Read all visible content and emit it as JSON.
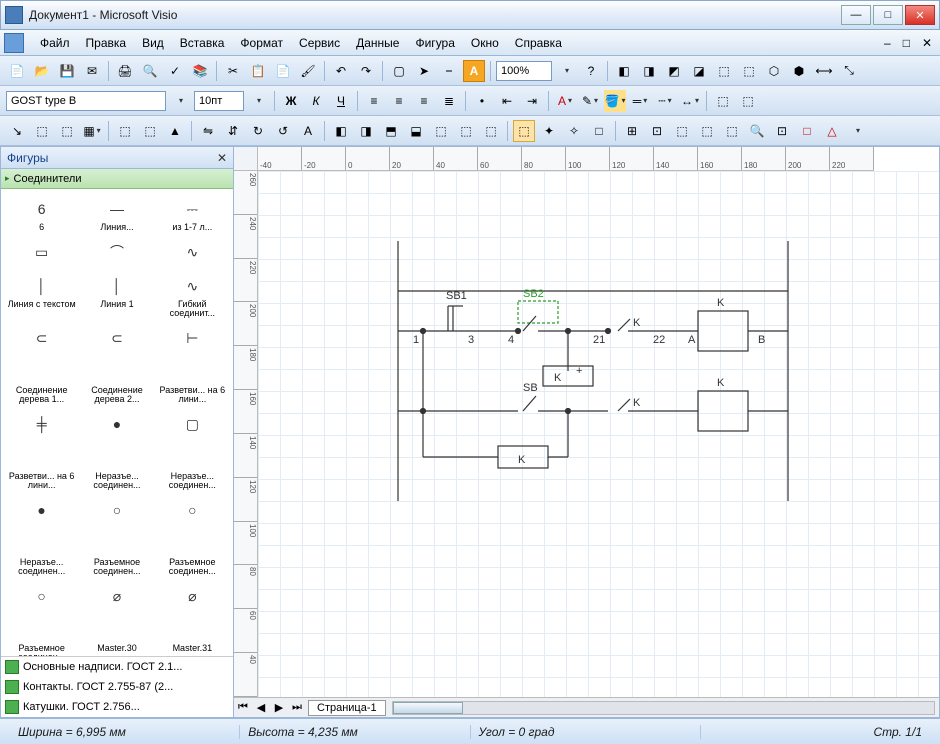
{
  "window": {
    "title": "Документ1 - Microsoft Visio"
  },
  "menu": {
    "items": [
      "Файл",
      "Правка",
      "Вид",
      "Вставка",
      "Формат",
      "Сервис",
      "Данные",
      "Фигура",
      "Окно",
      "Справка"
    ]
  },
  "toolbar1": {
    "zoom": "100%"
  },
  "toolbar2": {
    "font": "GOST type B",
    "size": "10пт",
    "bold": "Ж",
    "italic": "К",
    "underline": "Ч",
    "A": "A"
  },
  "shapes_panel": {
    "title": "Фигуры",
    "stencil_open": "Соединители",
    "shapes": [
      {
        "glyph": "6",
        "label": "6"
      },
      {
        "glyph": "—",
        "label": "Линия..."
      },
      {
        "glyph": "⎓",
        "label": "из 1-7 л..."
      },
      {
        "glyph": "▭",
        "label": ""
      },
      {
        "glyph": "⌒",
        "label": ""
      },
      {
        "glyph": "∿",
        "label": ""
      },
      {
        "glyph": "│",
        "label": "Линия с текстом"
      },
      {
        "glyph": "│",
        "label": "Линия 1"
      },
      {
        "glyph": "∿",
        "label": "Гибкий соединит..."
      },
      {
        "glyph": "⊂",
        "label": ""
      },
      {
        "glyph": "⊂",
        "label": ""
      },
      {
        "glyph": "⊢",
        "label": ""
      },
      {
        "glyph": "",
        "label": "Соединение дерева 1..."
      },
      {
        "glyph": "",
        "label": "Соединение дерева 2..."
      },
      {
        "glyph": "",
        "label": "Разветви... на 6 лини..."
      },
      {
        "glyph": "╪",
        "label": ""
      },
      {
        "glyph": "●",
        "label": ""
      },
      {
        "glyph": "▢",
        "label": ""
      },
      {
        "glyph": "",
        "label": "Разветви... на 6 лини..."
      },
      {
        "glyph": "",
        "label": "Неразъе... соединен..."
      },
      {
        "glyph": "",
        "label": "Неразъе... соединен..."
      },
      {
        "glyph": "●",
        "label": ""
      },
      {
        "glyph": "○",
        "label": ""
      },
      {
        "glyph": "○",
        "label": ""
      },
      {
        "glyph": "",
        "label": "Неразъе... соединен..."
      },
      {
        "glyph": "",
        "label": "Разъемное соединен..."
      },
      {
        "glyph": "",
        "label": "Разъемное соединен..."
      },
      {
        "glyph": "○",
        "label": ""
      },
      {
        "glyph": "⌀",
        "label": ""
      },
      {
        "glyph": "⌀",
        "label": ""
      },
      {
        "glyph": "",
        "label": "Разъемное соединен..."
      },
      {
        "glyph": "",
        "label": "Master.30"
      },
      {
        "glyph": "",
        "label": "Master.31"
      },
      {
        "glyph": "⋔",
        "label": ""
      },
      {
        "glyph": "⏚",
        "label": ""
      },
      {
        "glyph": "",
        "label": ""
      }
    ],
    "stencils": [
      "Основные надписи. ГОСТ 2.1...",
      "Контакты. ГОСТ 2.755-87 (2...",
      "Катушки. ГОСТ 2.756..."
    ]
  },
  "canvas": {
    "ruler_h": [
      "-40",
      "-20",
      "0",
      "20",
      "40",
      "60",
      "80",
      "100",
      "120",
      "140",
      "160",
      "180",
      "200",
      "220"
    ],
    "ruler_v": [
      "260",
      "240",
      "220",
      "200",
      "180",
      "160",
      "140",
      "120",
      "100",
      "80",
      "60",
      "40"
    ],
    "page_tab": "Страница-1",
    "diagram": {
      "labels": {
        "sb1": "SB1",
        "sb2": "SB2",
        "sb": "SB",
        "k1": "K",
        "k2": "K",
        "k3": "K",
        "k4": "K",
        "k5": "K",
        "kplus": "K",
        "n1": "1",
        "n3": "3",
        "n4": "4",
        "n21": "21",
        "n22": "22",
        "nA": "A",
        "nB": "B"
      },
      "colors": {
        "line": "#333333",
        "node": "#333333",
        "sel": "#2a9d2a"
      }
    }
  },
  "status": {
    "width": "Ширина = 6,995 мм",
    "height": "Высота = 4,235 мм",
    "angle": "Угол = 0 град",
    "page": "Стр. 1/1"
  }
}
